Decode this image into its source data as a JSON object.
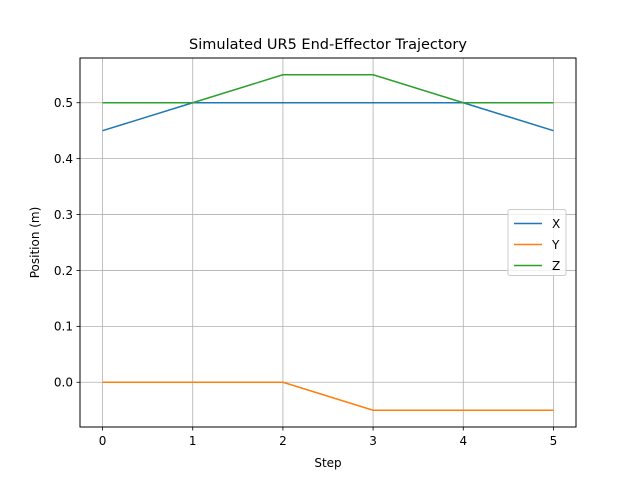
{
  "chart_data": {
    "type": "line",
    "title": "Simulated UR5 End-Effector Trajectory",
    "xlabel": "Step",
    "ylabel": "Position (m)",
    "x": [
      0,
      1,
      2,
      3,
      4,
      5
    ],
    "x_ticks": [
      "0",
      "1",
      "2",
      "3",
      "4",
      "5"
    ],
    "y_ticks": [
      "0.0",
      "0.1",
      "0.2",
      "0.3",
      "0.4",
      "0.5"
    ],
    "y_tick_values": [
      0.0,
      0.1,
      0.2,
      0.3,
      0.4,
      0.5
    ],
    "xlim": [
      -0.25,
      5.25
    ],
    "ylim": [
      -0.08,
      0.58
    ],
    "grid": true,
    "legend_placement": "center-right",
    "series": [
      {
        "name": "X",
        "color": "#1f77b4",
        "values": [
          0.45,
          0.5,
          0.5,
          0.5,
          0.5,
          0.45
        ]
      },
      {
        "name": "Y",
        "color": "#ff7f0e",
        "values": [
          0.0,
          0.0,
          0.0,
          -0.05,
          -0.05,
          -0.05
        ]
      },
      {
        "name": "Z",
        "color": "#2ca02c",
        "values": [
          0.5,
          0.5,
          0.55,
          0.55,
          0.5,
          0.5
        ]
      }
    ]
  }
}
